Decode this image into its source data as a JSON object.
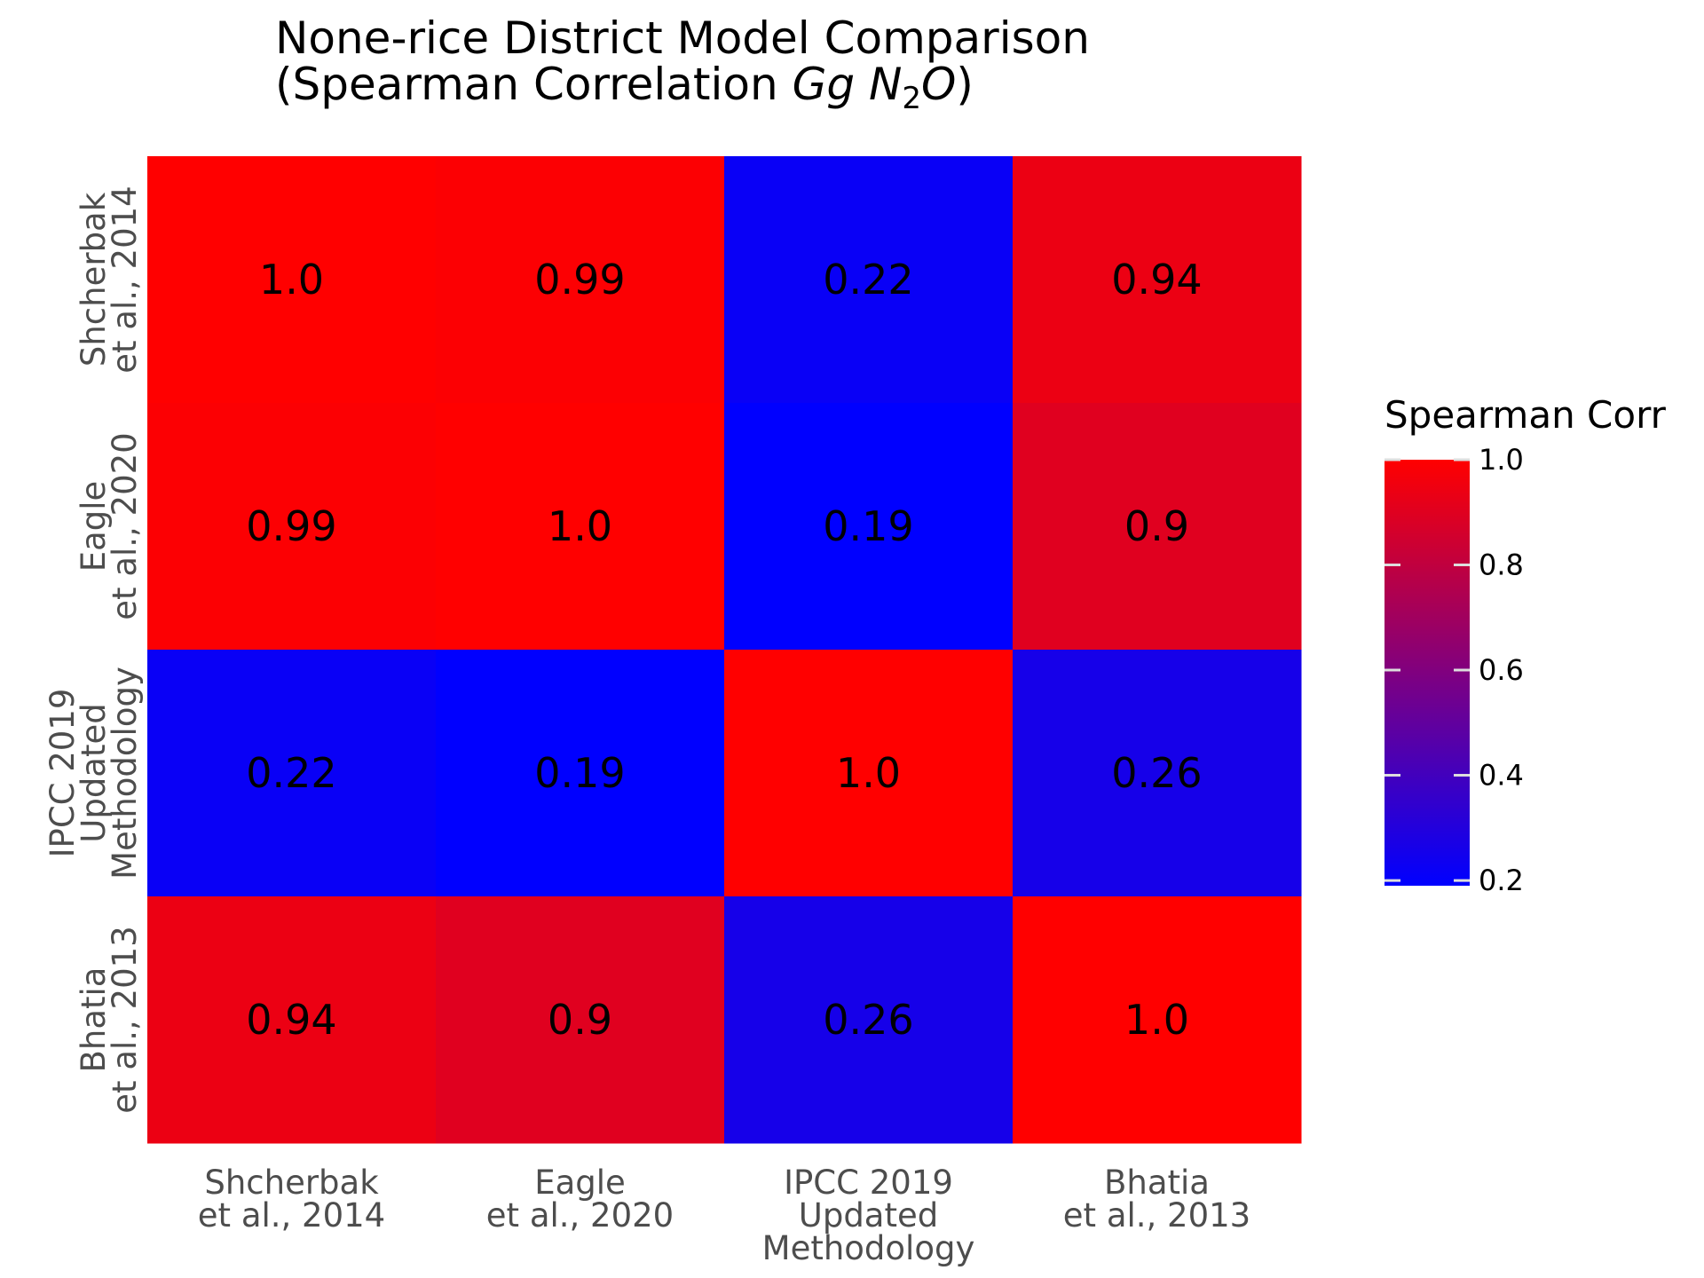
{
  "chart_data": {
    "type": "heatmap",
    "title_line1": "None-rice District Model Comparison",
    "title_line2_prefix": "(Spearman Correlation ",
    "title_line2_units_gg": "Gg",
    "title_line2_units_n": "N",
    "title_line2_units_sub": "2",
    "title_line2_units_o": "O",
    "title_line2_suffix": ")",
    "x_categories": [
      [
        "Shcherbak",
        "et al., 2014"
      ],
      [
        "Eagle",
        "et al., 2020"
      ],
      [
        "IPCC 2019",
        "Updated",
        "Methodology"
      ],
      [
        "Bhatia",
        "et al., 2013"
      ]
    ],
    "y_categories": [
      [
        "Shcherbak",
        "et al., 2014"
      ],
      [
        "Eagle",
        "et al., 2020"
      ],
      [
        "IPCC 2019",
        "Updated",
        "Methodology"
      ],
      [
        "Bhatia",
        "et al., 2013"
      ]
    ],
    "values": [
      [
        1.0,
        0.99,
        0.22,
        0.94
      ],
      [
        0.99,
        1.0,
        0.19,
        0.9
      ],
      [
        0.22,
        0.19,
        1.0,
        0.26
      ],
      [
        0.94,
        0.9,
        0.26,
        1.0
      ]
    ],
    "labels": [
      [
        "1.0",
        "0.99",
        "0.22",
        "0.94"
      ],
      [
        "0.99",
        "1.0",
        "0.19",
        "0.9"
      ],
      [
        "0.22",
        "0.19",
        "1.0",
        "0.26"
      ],
      [
        "0.94",
        "0.9",
        "0.26",
        "1.0"
      ]
    ],
    "colorscale": {
      "low": "#0000ff",
      "high": "#ff0000",
      "range": [
        0.19,
        1.0
      ]
    },
    "legend": {
      "title": "Spearman Corr",
      "ticks": [
        1.0,
        0.8,
        0.6,
        0.4,
        0.2
      ],
      "tick_labels": [
        "1.0",
        "0.8",
        "0.6",
        "0.4",
        "0.2"
      ]
    }
  }
}
